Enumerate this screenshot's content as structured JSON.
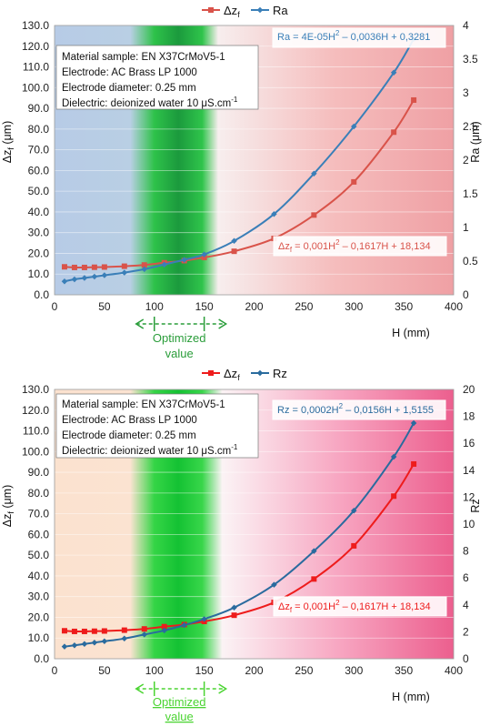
{
  "chart_data": [
    {
      "type": "line",
      "xlabel": "H (mm)",
      "ylabel_left": "Δz_f (μm)",
      "ylabel_right": "Ra (μm)",
      "xlim": [
        0,
        400
      ],
      "ylim_left": [
        0,
        130
      ],
      "ylim_right": [
        0,
        4
      ],
      "x_ticks": [
        "0",
        "50",
        "100",
        "150",
        "200",
        "250",
        "300",
        "350",
        "400"
      ],
      "y_ticks_left": [
        "0.0",
        "10.0",
        "20.0",
        "30.0",
        "40.0",
        "50.0",
        "60.0",
        "70.0",
        "80.0",
        "90.0",
        "100.0",
        "110.0",
        "120.0",
        "130.0"
      ],
      "y_ticks_right": [
        "0",
        "0.5",
        "1",
        "1.5",
        "2",
        "2.5",
        "3",
        "3.5",
        "4"
      ],
      "legend_position": "top",
      "background": "blue-green-red",
      "info_lines": [
        "Material sample: EN X37CrMoV5-1",
        "Electrode: AC Brass LP 1000",
        "Electrode diameter: 0.25 mm",
        "Dielectric: deionized water 10 μS.cm"
      ],
      "info_sup": "-1",
      "optimized_range": [
        100,
        150
      ],
      "optimized_label": [
        "Optimized",
        "value"
      ],
      "series": [
        {
          "name": "Δz_f",
          "axis": "left",
          "color": "#d9534a",
          "marker": "square",
          "x": [
            10,
            20,
            30,
            40,
            50,
            70,
            90,
            110,
            130,
            150,
            180,
            220,
            260,
            300,
            340,
            360
          ],
          "y": [
            13.5,
            13.2,
            13.2,
            13.3,
            13.4,
            13.8,
            14.4,
            15.5,
            16.5,
            18,
            21,
            27.2,
            38.5,
            54.5,
            78.5,
            94
          ],
          "equation": [
            "Δz",
            "f",
            " = 0,001H",
            "2",
            " – 0,1617H  + 18,134"
          ]
        },
        {
          "name": "Ra",
          "axis": "right",
          "color": "#3a7fb8",
          "marker": "diamond",
          "x": [
            10,
            20,
            30,
            40,
            50,
            70,
            90,
            110,
            130,
            150,
            180,
            220,
            260,
            300,
            340,
            360
          ],
          "y": [
            0.2,
            0.23,
            0.25,
            0.27,
            0.29,
            0.33,
            0.38,
            0.45,
            0.52,
            0.6,
            0.8,
            1.2,
            1.8,
            2.5,
            3.3,
            3.8
          ],
          "equation": [
            "Ra  = 4E-05H",
            "2",
            " – 0,0036H  + 0,3281"
          ]
        }
      ]
    },
    {
      "type": "line",
      "xlabel": "H (mm)",
      "ylabel_left": "Δz_f (μm)",
      "ylabel_right": "Rz",
      "xlim": [
        0,
        400
      ],
      "ylim_left": [
        0,
        130
      ],
      "ylim_right": [
        0,
        20
      ],
      "x_ticks": [
        "0",
        "50",
        "100",
        "150",
        "200",
        "250",
        "300",
        "350",
        "400"
      ],
      "y_ticks_left": [
        "0.0",
        "10.0",
        "20.0",
        "30.0",
        "40.0",
        "50.0",
        "60.0",
        "70.0",
        "80.0",
        "90.0",
        "100.0",
        "110.0",
        "120.0",
        "130.0"
      ],
      "y_ticks_right": [
        "0",
        "2",
        "4",
        "6",
        "8",
        "10",
        "12",
        "14",
        "16",
        "18",
        "20"
      ],
      "legend_position": "top",
      "background": "peach-green-pink",
      "info_lines": [
        "Material sample: EN X37CrMoV5-1",
        "Electrode: AC Brass LP 1000",
        "Electrode diameter: 0.25 mm",
        "Dielectric: deionized water 10 μS.cm"
      ],
      "info_sup": "-1",
      "optimized_range": [
        100,
        150
      ],
      "optimized_label": [
        "Optimized",
        "value"
      ],
      "series": [
        {
          "name": "Δz_f",
          "axis": "left",
          "color": "#ee1c1c",
          "marker": "square",
          "x": [
            10,
            20,
            30,
            40,
            50,
            70,
            90,
            110,
            130,
            150,
            180,
            220,
            260,
            300,
            340,
            360
          ],
          "y": [
            13.5,
            13.2,
            13.2,
            13.3,
            13.4,
            13.8,
            14.4,
            15.5,
            16.5,
            18,
            21,
            27.2,
            38.5,
            54.5,
            78.5,
            94
          ],
          "equation": [
            "Δz",
            "f",
            " = 0,001H",
            "2",
            " – 0,1617H  + 18,134"
          ]
        },
        {
          "name": "Rz",
          "axis": "right",
          "color": "#2a6b9e",
          "marker": "diamond",
          "x": [
            10,
            20,
            30,
            40,
            50,
            70,
            90,
            110,
            130,
            150,
            180,
            220,
            260,
            300,
            340,
            360
          ],
          "y": [
            0.9,
            1.0,
            1.1,
            1.2,
            1.3,
            1.5,
            1.8,
            2.1,
            2.5,
            2.95,
            3.8,
            5.5,
            8.0,
            11.0,
            15.0,
            17.5
          ],
          "equation": [
            "Rz  = 0,0002H",
            "2",
            " – 0,0156H  + 1,5155"
          ]
        }
      ]
    }
  ]
}
